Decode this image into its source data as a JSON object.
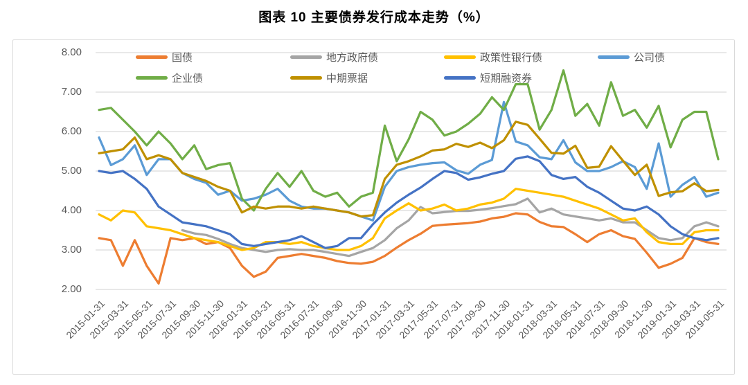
{
  "title": "图表 10 主要债券发行成本走势（%）",
  "colors": {
    "background": "#FFFFFF",
    "frame_border": "#D9D9D9",
    "grid": "#D9D9D9",
    "axis_text": "#595959",
    "title_text": "#000000"
  },
  "chart_data": {
    "type": "line",
    "title": "图表 10 主要债券发行成本走势（%）",
    "xlabel": "",
    "ylabel": "",
    "ylim": [
      2.0,
      8.0
    ],
    "grid": true,
    "legend_position": "top",
    "y_ticks": [
      "8.00",
      "7.00",
      "6.00",
      "5.00",
      "4.00",
      "3.00",
      "2.00"
    ],
    "x_tick_labels": [
      "2015-01-31",
      "2015-03-31",
      "2015-05-31",
      "2015-07-31",
      "2015-09-30",
      "2015-11-30",
      "2016-01-31",
      "2016-03-31",
      "2016-05-31",
      "2016-07-31",
      "2016-09-30",
      "2016-11-30",
      "2017-01-31",
      "2017-03-31",
      "2017-05-31",
      "2017-07-31",
      "2017-09-30",
      "2017-11-30",
      "2018-01-31",
      "2018-03-31",
      "2018-05-31",
      "2018-07-31",
      "2018-09-30",
      "2018-11-30",
      "2019-01-31",
      "2019-03-31",
      "2019-05-31"
    ],
    "x_points_total": 53,
    "series": [
      {
        "key": "treasury",
        "name": "国债",
        "color": "#ED7D31",
        "legend_row": 1,
        "values": [
          3.3,
          3.25,
          2.6,
          3.25,
          2.6,
          2.15,
          3.3,
          3.25,
          3.3,
          3.15,
          3.2,
          3.05,
          2.6,
          2.32,
          2.45,
          2.8,
          2.85,
          2.9,
          2.85,
          2.8,
          2.72,
          2.67,
          2.65,
          2.7,
          2.85,
          3.06,
          3.25,
          3.41,
          3.61,
          3.64,
          3.66,
          3.68,
          3.72,
          3.8,
          3.84,
          3.93,
          3.9,
          3.71,
          3.6,
          3.58,
          3.4,
          3.2,
          3.4,
          3.5,
          3.35,
          3.28,
          2.93,
          2.55,
          2.65,
          2.8,
          3.3,
          3.2,
          3.15
        ]
      },
      {
        "key": "local-gov-bond",
        "name": "地方政府债",
        "color": "#A5A5A5",
        "legend_row": 1,
        "values": [
          null,
          null,
          null,
          null,
          null,
          null,
          null,
          3.5,
          3.42,
          3.38,
          3.28,
          3.15,
          3.05,
          3.0,
          2.95,
          3.0,
          3.02,
          3.0,
          3.0,
          2.95,
          2.9,
          2.85,
          2.95,
          3.05,
          3.25,
          3.55,
          3.75,
          4.09,
          3.93,
          3.96,
          3.99,
          3.99,
          4.02,
          4.06,
          4.11,
          4.16,
          4.3,
          3.95,
          4.05,
          3.9,
          3.85,
          3.8,
          3.75,
          3.8,
          3.7,
          3.7,
          3.5,
          3.3,
          3.25,
          3.3,
          3.6,
          3.7,
          3.6
        ]
      },
      {
        "key": "policy-bank-bond",
        "name": "政策性银行债",
        "color": "#FFC000",
        "legend_row": 1,
        "values": [
          3.9,
          3.75,
          4.0,
          3.95,
          3.6,
          3.55,
          3.5,
          3.4,
          3.3,
          3.25,
          3.2,
          3.1,
          3.0,
          3.05,
          3.2,
          3.2,
          3.15,
          3.2,
          3.1,
          3.05,
          3.0,
          3.0,
          3.1,
          3.3,
          3.8,
          4.0,
          4.18,
          4.0,
          4.05,
          4.15,
          4.0,
          4.05,
          4.15,
          4.2,
          4.3,
          4.55,
          4.5,
          4.45,
          4.4,
          4.35,
          4.25,
          4.15,
          4.05,
          3.9,
          3.75,
          3.8,
          3.45,
          3.2,
          3.15,
          3.15,
          3.45,
          3.5,
          3.5
        ]
      },
      {
        "key": "corporate-bond",
        "name": "公司债",
        "color": "#5B9BD5",
        "legend_row": 1,
        "values": [
          5.85,
          5.15,
          5.3,
          5.65,
          4.9,
          5.3,
          5.3,
          4.95,
          4.8,
          4.7,
          4.4,
          4.5,
          4.25,
          4.3,
          4.4,
          4.55,
          4.25,
          4.1,
          4.05,
          4.05,
          4.0,
          3.95,
          3.85,
          3.75,
          4.6,
          5.0,
          5.1,
          5.16,
          5.2,
          5.22,
          5.02,
          4.93,
          5.16,
          5.28,
          6.75,
          5.75,
          5.65,
          5.35,
          5.3,
          5.78,
          5.22,
          5.0,
          5.0,
          5.1,
          5.25,
          5.1,
          4.55,
          5.7,
          4.35,
          4.65,
          4.85,
          4.35,
          4.45
        ]
      },
      {
        "key": "enterprise-bond",
        "name": "企业债",
        "color": "#70AD47",
        "legend_row": 2,
        "values": [
          6.55,
          6.6,
          6.3,
          6.0,
          5.65,
          6.0,
          5.7,
          5.3,
          5.65,
          5.05,
          5.15,
          5.2,
          4.3,
          4.0,
          4.55,
          4.95,
          4.6,
          5.0,
          4.5,
          4.35,
          4.45,
          4.1,
          4.35,
          4.45,
          6.15,
          5.25,
          5.8,
          6.5,
          6.3,
          5.9,
          6.0,
          6.2,
          6.45,
          6.87,
          6.55,
          7.2,
          7.2,
          6.05,
          6.55,
          7.55,
          6.4,
          6.7,
          6.15,
          7.25,
          6.4,
          6.55,
          6.1,
          6.65,
          5.6,
          6.3,
          6.5,
          6.5,
          5.3
        ]
      },
      {
        "key": "medium-term-note",
        "name": "中期票据",
        "color": "#BF9000",
        "legend_row": 2,
        "values": [
          5.45,
          5.5,
          5.55,
          5.85,
          5.3,
          5.4,
          5.3,
          4.95,
          4.85,
          4.75,
          4.6,
          4.5,
          3.95,
          4.1,
          4.05,
          4.1,
          4.1,
          4.05,
          4.1,
          4.05,
          4.0,
          3.95,
          3.85,
          3.88,
          4.8,
          5.16,
          5.25,
          5.37,
          5.52,
          5.55,
          5.69,
          5.61,
          5.72,
          5.58,
          5.78,
          6.25,
          6.17,
          5.82,
          5.46,
          5.44,
          5.64,
          5.08,
          5.11,
          5.63,
          5.26,
          4.9,
          5.16,
          4.37,
          4.46,
          4.49,
          4.69,
          4.49,
          4.52
        ]
      },
      {
        "key": "short-term-cp",
        "name": "短期融资券",
        "color": "#4472C4",
        "legend_row": 2,
        "values": [
          5.0,
          4.95,
          5.0,
          4.8,
          4.55,
          4.1,
          3.9,
          3.7,
          3.65,
          3.6,
          3.5,
          3.4,
          3.15,
          3.1,
          3.15,
          3.2,
          3.25,
          3.35,
          3.2,
          3.05,
          3.1,
          3.3,
          3.3,
          3.65,
          3.95,
          4.2,
          4.4,
          4.58,
          4.8,
          5.0,
          4.95,
          4.78,
          4.84,
          4.93,
          5.0,
          5.31,
          5.37,
          5.25,
          4.9,
          4.8,
          4.85,
          4.6,
          4.45,
          4.25,
          4.05,
          4.0,
          4.1,
          3.9,
          3.6,
          3.4,
          3.3,
          3.25,
          3.3
        ]
      }
    ]
  }
}
